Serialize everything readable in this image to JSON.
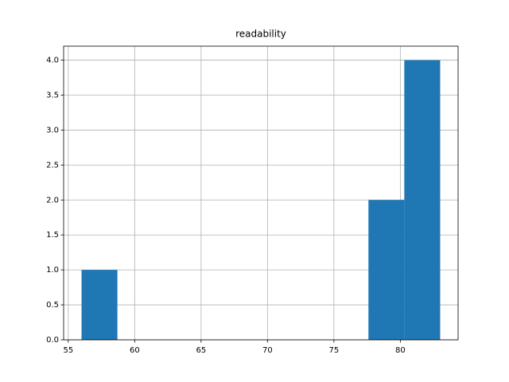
{
  "chart_data": {
    "type": "histogram",
    "title": "readability",
    "bins": [
      56,
      58.7,
      61.4,
      64.1,
      66.8,
      69.5,
      72.2,
      74.9,
      77.6,
      80.3,
      83
    ],
    "values": [
      1,
      0,
      0,
      0,
      0,
      0,
      0,
      0,
      2,
      4
    ],
    "color": "#1f77b4",
    "xlim": [
      54.65,
      84.35
    ],
    "xticks": [
      55,
      60,
      65,
      70,
      75,
      80
    ],
    "ylim": [
      0,
      4.2
    ],
    "yticks": [
      {
        "value": 0,
        "label": "0.0"
      },
      0.5,
      {
        "value": 1,
        "label": "1.0"
      },
      1.5,
      {
        "value": 2,
        "label": "2.0"
      },
      2.5,
      {
        "value": 3,
        "label": "3.0"
      },
      3.5,
      {
        "value": 4,
        "label": "4.0"
      }
    ],
    "grid": true
  }
}
